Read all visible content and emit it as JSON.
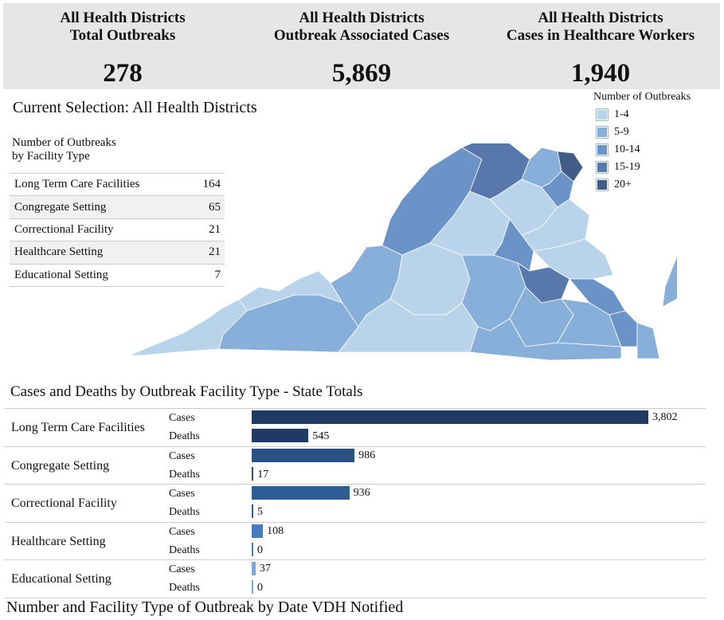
{
  "kpis": [
    {
      "title1": "All Health Districts",
      "title2": "Total Outbreaks",
      "value": "278"
    },
    {
      "title1": "All Health Districts",
      "title2": "Outbreak Associated Cases",
      "value": "5,869"
    },
    {
      "title1": "All Health Districts",
      "title2": "Cases in Healthcare Workers",
      "value": "1,940"
    }
  ],
  "selection_title": "Current Selection: All Health Districts",
  "facility_table": {
    "title1": "Number of Outbreaks",
    "title2": "by Facility Type",
    "rows": [
      {
        "label": "Long Term Care Facilities",
        "value": "164"
      },
      {
        "label": "Congregate Setting",
        "value": "65"
      },
      {
        "label": "Correctional Facility",
        "value": "21"
      },
      {
        "label": "Healthcare Setting",
        "value": "21"
      },
      {
        "label": "Educational Setting",
        "value": "7"
      }
    ]
  },
  "legend": {
    "title": "Number of Outbreaks",
    "items": [
      {
        "label": "1-4",
        "color": "#b9d3ea"
      },
      {
        "label": "5-9",
        "color": "#88afd9"
      },
      {
        "label": "10-14",
        "color": "#6b93c8"
      },
      {
        "label": "15-19",
        "color": "#5878ab"
      },
      {
        "label": "20+",
        "color": "#435c85"
      }
    ]
  },
  "bars_title": "Cases and Deaths by Outbreak Facility Type - State Totals",
  "bottom_title": "Number and Facility Type of Outbreak by Date VDH Notified",
  "chart_data": {
    "type": "bar",
    "title": "Cases and Deaths by Outbreak Facility Type - State Totals",
    "categories": [
      "Long Term Care Facilities",
      "Congregate Setting",
      "Correctional Facility",
      "Healthcare Setting",
      "Educational Setting"
    ],
    "series": [
      {
        "name": "Cases",
        "values": [
          3802,
          986,
          936,
          108,
          37
        ],
        "labels": [
          "3,802",
          "986",
          "936",
          "108",
          "37"
        ]
      },
      {
        "name": "Deaths",
        "values": [
          545,
          17,
          5,
          0,
          0
        ],
        "labels": [
          "545",
          "17",
          "5",
          "0",
          "0"
        ]
      }
    ],
    "bar_colors": [
      "#1f3a63",
      "#2b4f82",
      "#2e5d95",
      "#4a7bbf",
      "#7aa6d8"
    ],
    "xlim": [
      0,
      3802
    ]
  }
}
